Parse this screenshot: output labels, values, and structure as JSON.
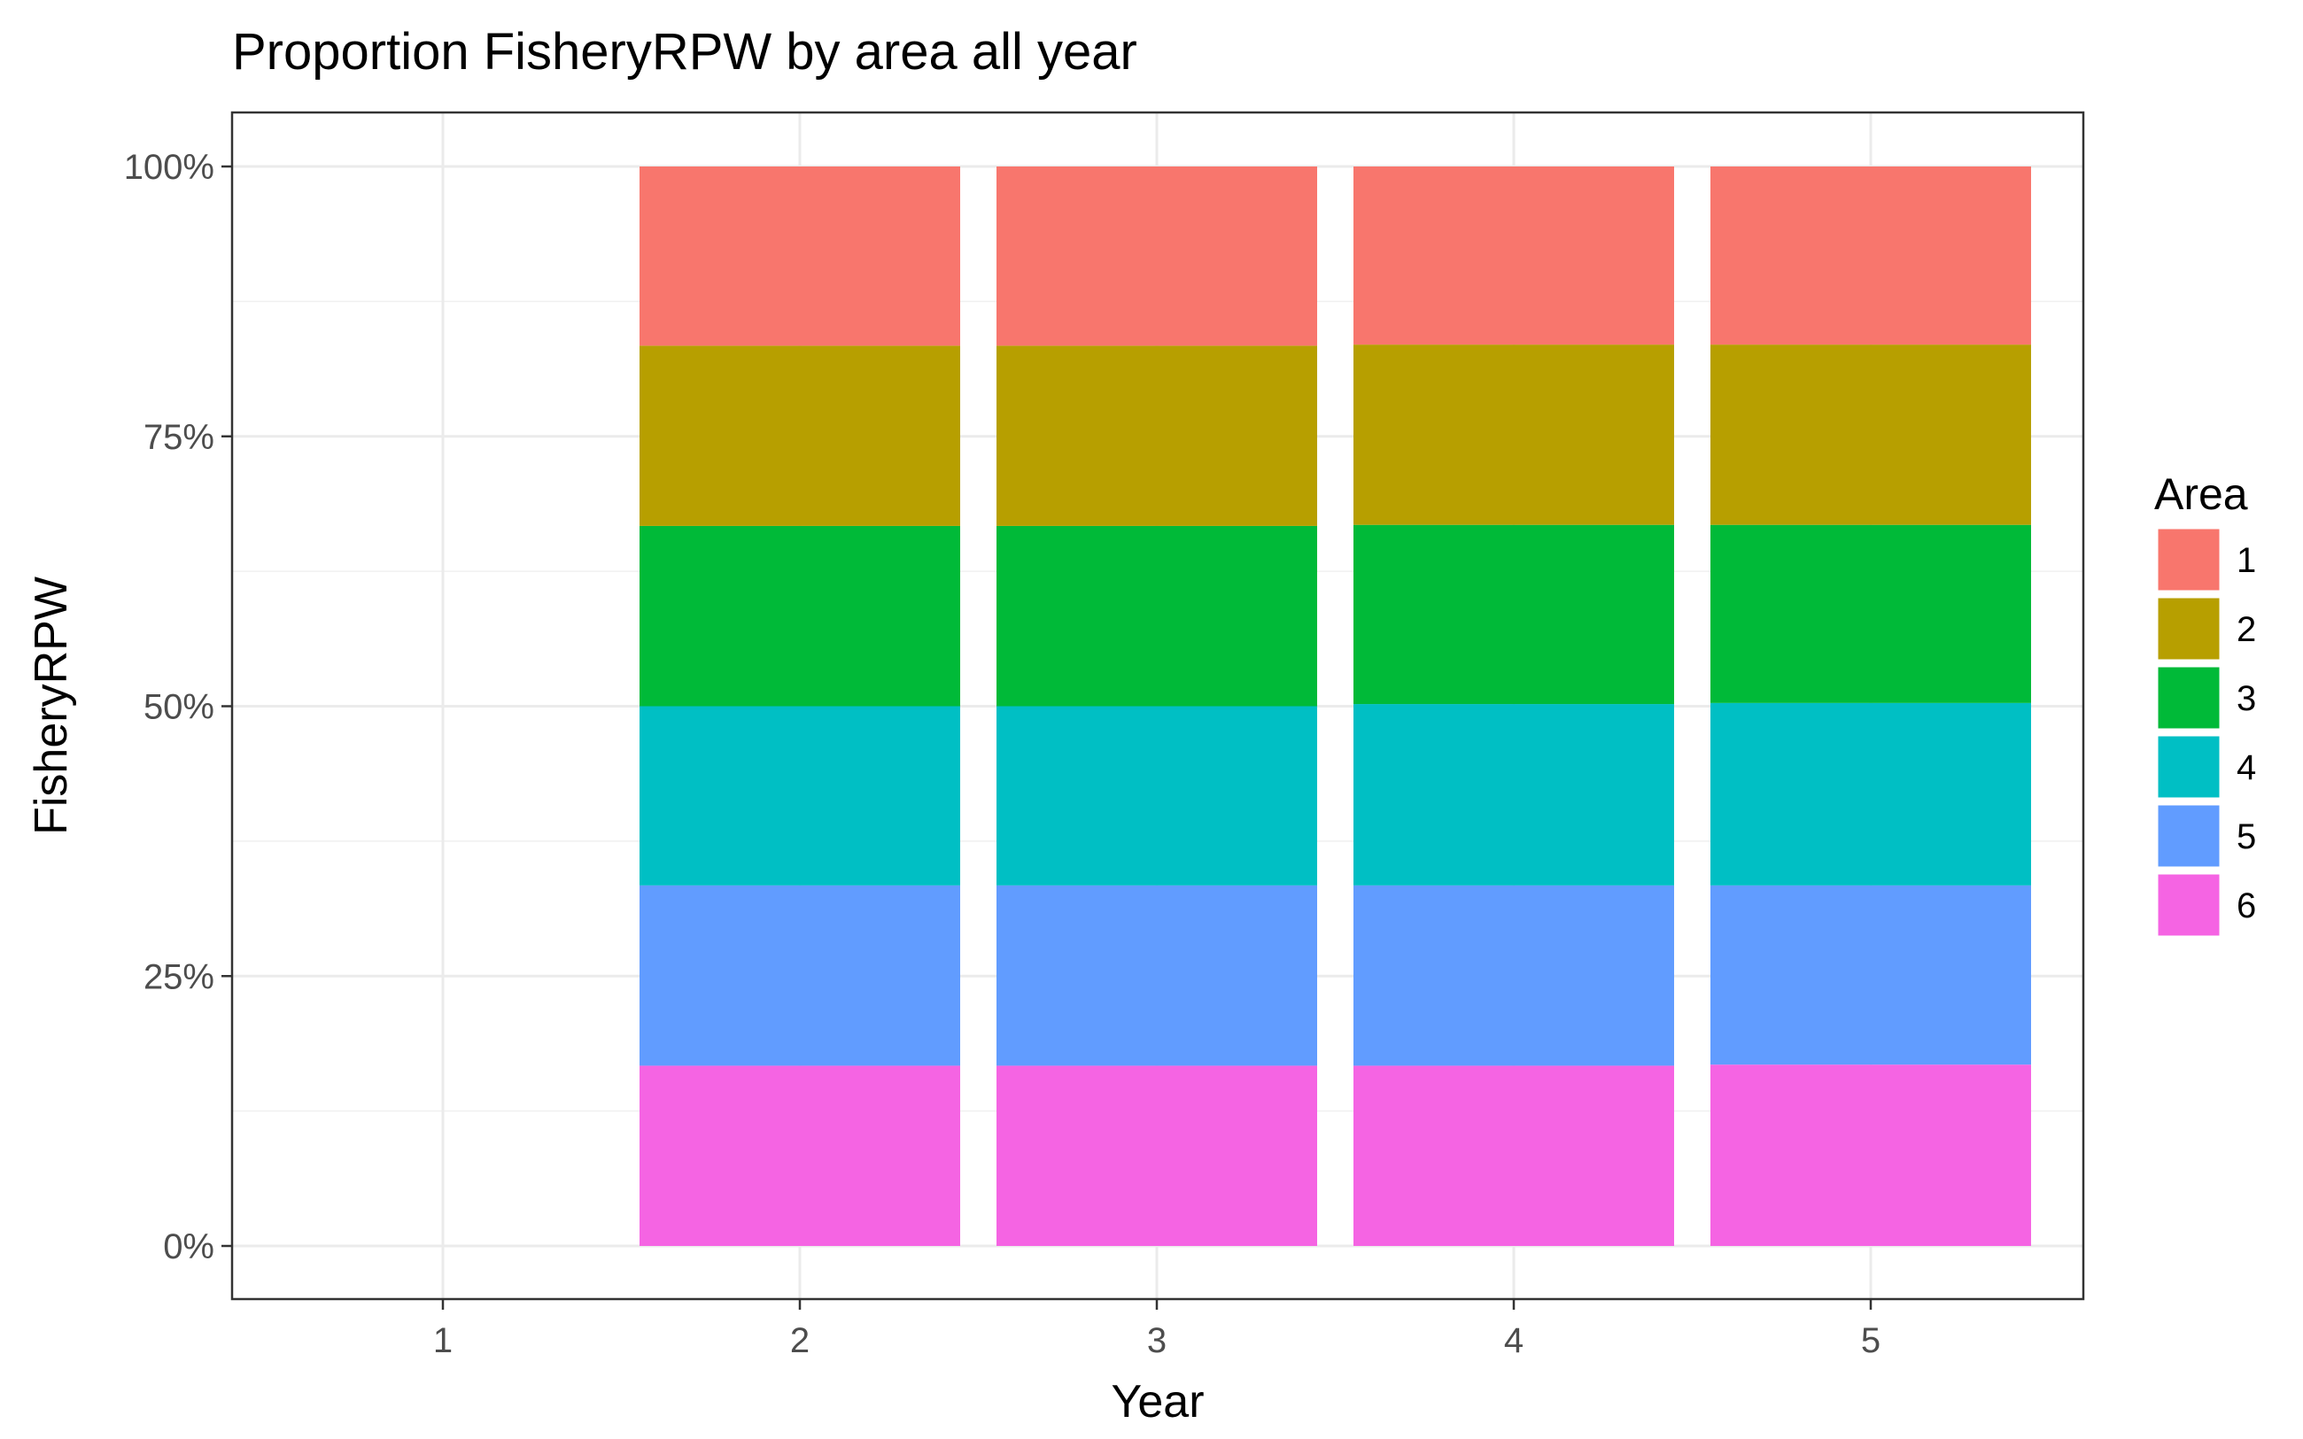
{
  "chart_data": {
    "type": "bar",
    "stacked": true,
    "normalized": true,
    "title": "Proportion FisheryRPW by area all year",
    "xlabel": "Year",
    "ylabel": "FisheryRPW",
    "categories": [
      "1",
      "2",
      "3",
      "4",
      "5"
    ],
    "ylim": [
      0,
      1
    ],
    "yticks": [
      {
        "value": 0,
        "label": "0%"
      },
      {
        "value": 0.25,
        "label": "25%"
      },
      {
        "value": 0.5,
        "label": "50%"
      },
      {
        "value": 0.75,
        "label": "75%"
      },
      {
        "value": 1,
        "label": "100%"
      }
    ],
    "grid": true,
    "legend": {
      "title": "Area",
      "placement": "right"
    },
    "series": [
      {
        "name": "1",
        "color": "#F8766D",
        "values": [
          0,
          0.166,
          0.166,
          0.165,
          0.165
        ]
      },
      {
        "name": "2",
        "color": "#B79F00",
        "values": [
          0,
          0.167,
          0.167,
          0.167,
          0.167
        ]
      },
      {
        "name": "3",
        "color": "#00BA38",
        "values": [
          0,
          0.167,
          0.167,
          0.166,
          0.165
        ]
      },
      {
        "name": "4",
        "color": "#00BFC4",
        "values": [
          0,
          0.166,
          0.166,
          0.168,
          0.169
        ]
      },
      {
        "name": "5",
        "color": "#619CFF",
        "values": [
          0,
          0.167,
          0.167,
          0.167,
          0.166
        ]
      },
      {
        "name": "6",
        "color": "#F564E3",
        "values": [
          0,
          0.167,
          0.167,
          0.167,
          0.168
        ]
      }
    ]
  }
}
